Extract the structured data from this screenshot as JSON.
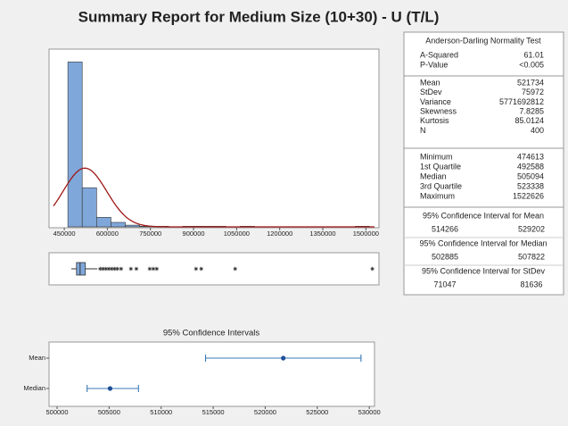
{
  "title": "Summary Report for Medium Size (10+30) - U (T/L)",
  "chart_data": [
    {
      "type": "histogram",
      "color": "#7fa7da",
      "bins": [
        462500,
        512500,
        562500,
        612500,
        662500,
        712500,
        762500,
        812500,
        862500,
        912500,
        962500,
        1012500,
        1062500,
        1112500,
        1162500,
        1212500,
        1262500,
        1312500,
        1362500,
        1412500,
        1462500,
        1512500
      ],
      "values": [
        295,
        70,
        17,
        8,
        3,
        1,
        1,
        0,
        1,
        1,
        1,
        0,
        1,
        0,
        0,
        0,
        0,
        0,
        0,
        0,
        1
      ],
      "fit_color": "#a01818",
      "xlim": [
        412500,
        1530000
      ],
      "ylim": [
        0,
        310
      ],
      "xticks": [
        450000,
        600000,
        750000,
        900000,
        1050000,
        1200000,
        1350000,
        1500000
      ]
    },
    {
      "type": "boxplot",
      "color": "#7fa7da",
      "min": 474613,
      "q1": 492588,
      "median": 505094,
      "q3": 523338,
      "whisker_high": 565000,
      "outliers": [
        575000,
        585000,
        595000,
        605000,
        615000,
        625000,
        635000,
        648000,
        682000,
        701000,
        747500,
        760000,
        772000,
        908700,
        927000,
        1045000,
        1522626
      ],
      "xlim": [
        412500,
        1530000
      ]
    },
    {
      "type": "interval",
      "title": "95% Confidence Intervals",
      "color": "#3a78b5",
      "categories": [
        "Mean",
        "Median"
      ],
      "values": [
        521734,
        505094
      ],
      "lower": [
        514266,
        502885
      ],
      "upper": [
        529202,
        507822
      ],
      "xlim": [
        499400,
        530500
      ],
      "xticks": [
        500000,
        505000,
        510000,
        515000,
        520000,
        525000,
        530000
      ]
    }
  ],
  "stats": {
    "title": "Anderson-Darling Normality Test",
    "normality": [
      {
        "label": "A-Squared",
        "value": 61.01
      },
      {
        "label": "P-Value",
        "value": "<0.005"
      }
    ],
    "descriptive": [
      {
        "label": "Mean",
        "value": 521734
      },
      {
        "label": "StDev",
        "value": 75972
      },
      {
        "label": "Variance",
        "value": 5771692812
      },
      {
        "label": "Skewness",
        "value": 7.8285
      },
      {
        "label": "Kurtosis",
        "value": 85.0124
      },
      {
        "label": "N",
        "value": 400
      }
    ],
    "quantiles": [
      {
        "label": "Minimum",
        "value": 474613
      },
      {
        "label": "1st Quartile",
        "value": 492588
      },
      {
        "label": "Median",
        "value": 505094
      },
      {
        "label": "3rd Quartile",
        "value": 523338
      },
      {
        "label": "Maximum",
        "value": 1522626
      }
    ],
    "intervals": [
      {
        "title": "95% Confidence Interval for Mean",
        "lower": 514266,
        "upper": 529202
      },
      {
        "title": "95% Confidence Interval for Median",
        "lower": 502885,
        "upper": 507822
      },
      {
        "title": "95% Confidence Interval for StDev",
        "lower": 71047,
        "upper": 81636
      }
    ]
  }
}
